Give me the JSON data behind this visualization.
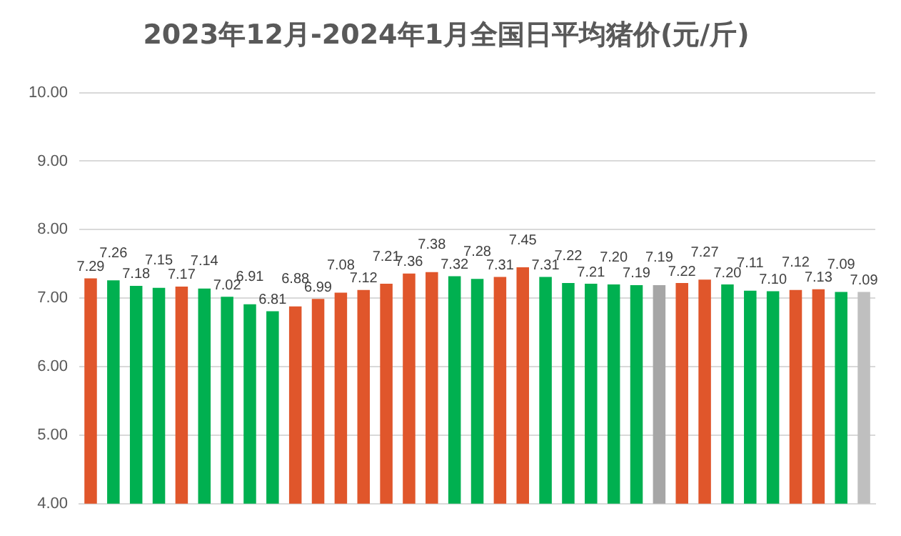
{
  "chart_data": {
    "type": "bar",
    "title": "2023年12月-2024年1月全国日平均猪价(元/斤)",
    "categories": [
      null,
      null,
      null,
      null,
      null,
      null,
      null,
      null,
      null,
      null,
      null,
      null,
      null,
      null,
      null,
      null,
      null,
      null,
      null,
      null,
      null,
      null,
      null,
      null,
      null,
      null,
      null,
      null,
      null,
      null,
      null,
      null,
      null,
      null,
      null
    ],
    "values": [
      7.29,
      7.26,
      7.18,
      7.15,
      7.17,
      7.14,
      7.02,
      6.91,
      6.81,
      6.88,
      6.99,
      7.08,
      7.12,
      7.21,
      7.36,
      7.38,
      7.32,
      7.28,
      7.31,
      7.45,
      7.31,
      7.22,
      7.21,
      7.2,
      7.19,
      7.19,
      7.22,
      7.27,
      7.2,
      7.11,
      7.1,
      7.12,
      7.13,
      7.09,
      7.09
    ],
    "colors": [
      "#e0562b",
      "#00b050",
      "#00b050",
      "#00b050",
      "#e0562b",
      "#00b050",
      "#00b050",
      "#00b050",
      "#00b050",
      "#e0562b",
      "#e0562b",
      "#e0562b",
      "#e0562b",
      "#e0562b",
      "#e0562b",
      "#e0562b",
      "#00b050",
      "#00b050",
      "#e0562b",
      "#e0562b",
      "#00b050",
      "#00b050",
      "#00b050",
      "#00b050",
      "#00b050",
      "#a6a6a6",
      "#e0562b",
      "#e0562b",
      "#00b050",
      "#00b050",
      "#00b050",
      "#e0562b",
      "#e0562b",
      "#00b050",
      "#bfbfbf"
    ],
    "ylim": [
      4,
      10
    ],
    "yticks": [
      {
        "value": 4,
        "label": "4.00"
      },
      {
        "value": 5,
        "label": "5.00"
      },
      {
        "value": 6,
        "label": "6.00"
      },
      {
        "value": 7,
        "label": "7.00"
      },
      {
        "value": 8,
        "label": "8.00"
      },
      {
        "value": 9,
        "label": "9.00"
      },
      {
        "value": 10,
        "label": "10.00"
      }
    ],
    "value_labels": [
      "7.29",
      "7.26",
      "7.18",
      "7.15",
      "7.17",
      "7.14",
      "7.02",
      "6.91",
      "6.81",
      "6.88",
      "6.99",
      "7.08",
      "7.12",
      "7.21",
      "7.36",
      "7.38",
      "7.32",
      "7.28",
      "7.31",
      "7.45",
      "7.31",
      "7.22",
      "7.21",
      "7.20",
      "7.19",
      "7.19",
      "7.22",
      "7.27",
      "7.20",
      "7.11",
      "7.10",
      "7.12",
      "7.13",
      "7.09",
      "7.09"
    ],
    "grid": "y",
    "legend": false
  }
}
